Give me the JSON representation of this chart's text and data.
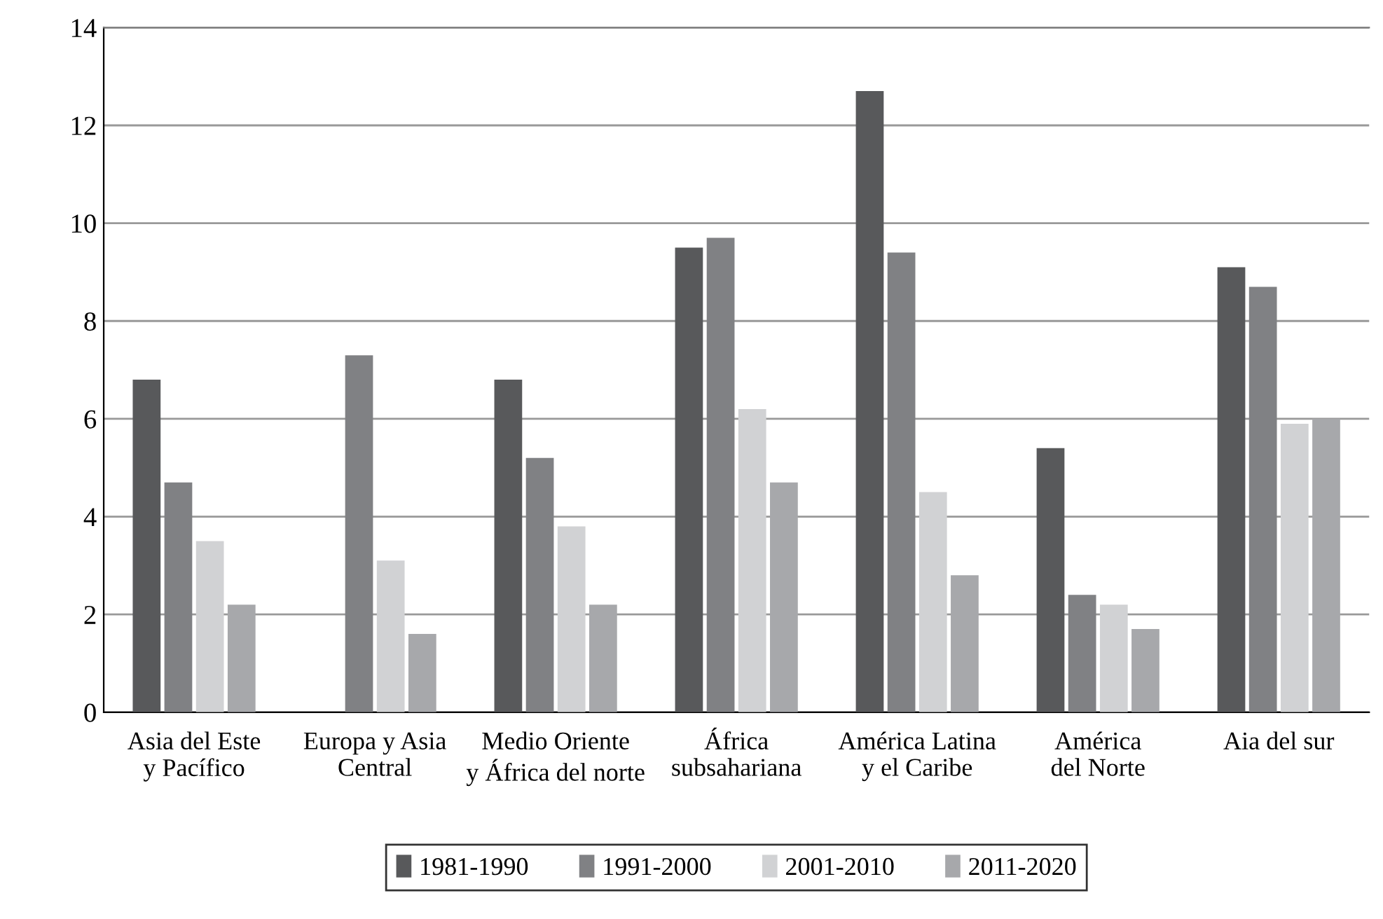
{
  "chart_data": {
    "type": "bar",
    "categories": [
      "Asia del Este\ny Pacífico",
      "Europa y Asia\nCentral",
      "Medio Oriente\ny África del norte",
      "África\nsubsahariana",
      "América Latina\ny el Caribe",
      "América\ndel Norte",
      "Aia del sur"
    ],
    "series": [
      {
        "name": "1981-1990",
        "color": "#58595b",
        "values": [
          6.8,
          null,
          6.8,
          9.5,
          12.7,
          5.4,
          9.1
        ]
      },
      {
        "name": "1991-2000",
        "color": "#808184",
        "values": [
          4.7,
          7.3,
          5.2,
          9.7,
          9.4,
          2.4,
          8.7
        ]
      },
      {
        "name": "2001-2010",
        "color": "#d1d2d4",
        "values": [
          3.5,
          3.1,
          3.8,
          6.2,
          4.5,
          2.2,
          5.9
        ]
      },
      {
        "name": "2011-2020",
        "color": "#a7a8ab",
        "values": [
          2.2,
          1.6,
          2.2,
          4.7,
          2.8,
          1.7,
          6.0
        ]
      }
    ],
    "ylim": [
      0,
      14
    ],
    "yticks": [
      0,
      2,
      4,
      6,
      8,
      10,
      12,
      14
    ],
    "grid": "y",
    "legend": "bottom"
  }
}
